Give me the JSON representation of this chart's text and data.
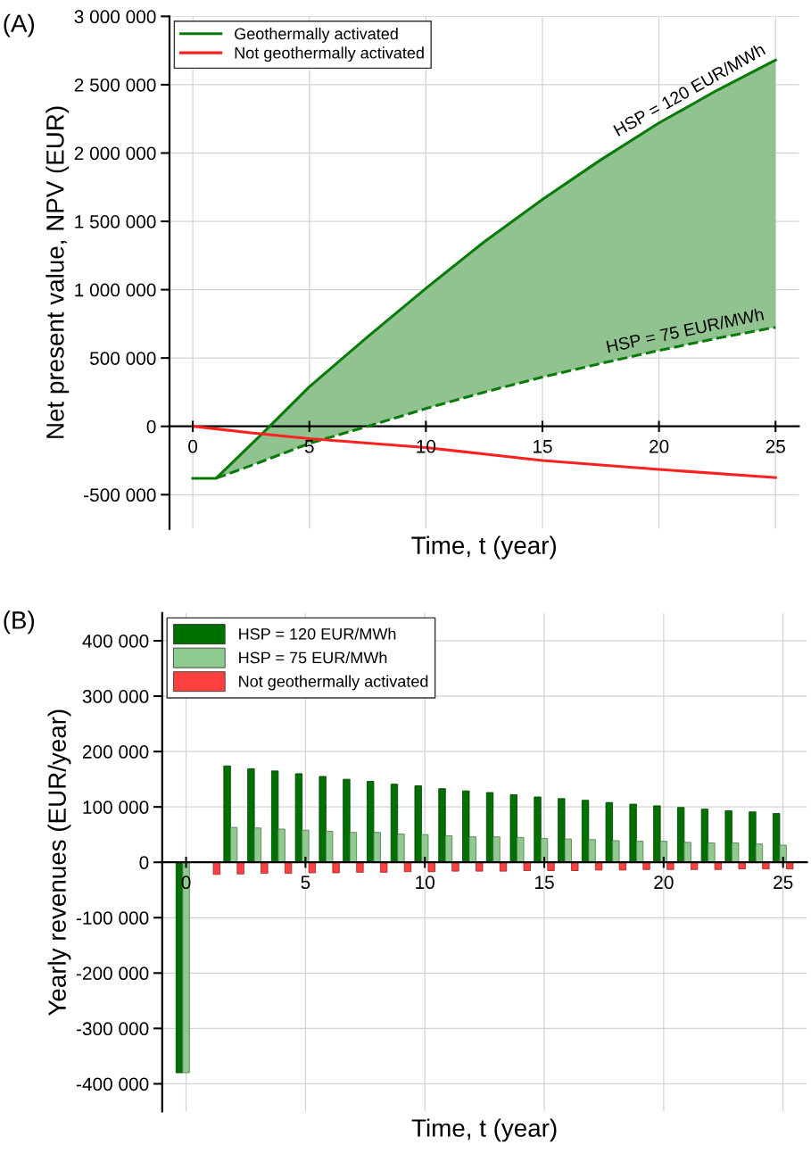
{
  "chart_data": [
    {
      "type": "line",
      "title": "(A)",
      "xlabel": "Time, t (year)",
      "ylabel": "Net present value, NPV (EUR)",
      "series": [
        {
          "name": "Geothermally activated",
          "color": "#0a7a0a",
          "line_style": "solid",
          "x": [
            0,
            1,
            2,
            3,
            4,
            5,
            7.5,
            10,
            12.5,
            15,
            17.5,
            20,
            22.5,
            25
          ],
          "values": [
            -380000,
            -380000,
            -215000,
            -50000,
            120000,
            290000,
            655000,
            1010000,
            1350000,
            1660000,
            1950000,
            2220000,
            2460000,
            2680000
          ],
          "lower": [
            -380000,
            -380000,
            -318000,
            -255000,
            -190000,
            -125000,
            0,
            130000,
            250000,
            360000,
            460000,
            555000,
            645000,
            725000
          ],
          "upper": [
            -380000,
            -380000,
            -215000,
            -50000,
            120000,
            290000,
            655000,
            1010000,
            1350000,
            1660000,
            1950000,
            2220000,
            2460000,
            2680000
          ]
        },
        {
          "color": "#0a7a0a",
          "line_style": "dashed",
          "x": [
            1,
            2,
            3,
            4,
            5,
            7.5,
            10,
            12.5,
            15,
            17.5,
            20,
            22.5,
            25
          ],
          "values": [
            -380000,
            -318000,
            -255000,
            -190000,
            -125000,
            0,
            130000,
            250000,
            360000,
            460000,
            555000,
            645000,
            725000
          ]
        },
        {
          "name": "Not geothermally activated",
          "color": "#ff2020",
          "line_style": "solid",
          "x": [
            0,
            2.5,
            5,
            10,
            15,
            20,
            25
          ],
          "values": [
            0,
            -47000,
            -90000,
            -155000,
            -250000,
            -315000,
            -375000
          ]
        }
      ],
      "xlim": [
        -1,
        26
      ],
      "xticks": [
        0,
        5,
        10,
        15,
        20,
        25
      ],
      "ylim": [
        -750000,
        3000000
      ],
      "yticks": [
        {
          "value": -500000,
          "label": "-500 000"
        },
        0,
        {
          "value": 500000,
          "label": "500 000"
        },
        {
          "value": 1000000,
          "label": "1 000 000"
        },
        {
          "value": 1500000,
          "label": "1 500 000"
        },
        {
          "value": 2000000,
          "label": "2 000 000"
        },
        {
          "value": 2500000,
          "label": "2 500 000"
        },
        {
          "value": 3000000,
          "label": "3 000 000"
        }
      ],
      "annotations": [
        {
          "text": "HSP = 120 EUR/MWh",
          "x": 21.5,
          "y": 2365000
        },
        {
          "text": "HSP = 75 EUR/MWh",
          "x": 21.2,
          "y": 597000
        }
      ],
      "grid": true,
      "legend": "top left",
      "marker": "none"
    },
    {
      "type": "bar",
      "title": "(B)",
      "xlabel": "Time, t (year)",
      "ylabel": "Yearly revenues (EUR/year)",
      "x": [
        0,
        1,
        2,
        3,
        4,
        5,
        6,
        7,
        8,
        9,
        10,
        11,
        12,
        13,
        14,
        15,
        16,
        17,
        18,
        19,
        20,
        21,
        22,
        23,
        24,
        25
      ],
      "series": [
        {
          "name": "HSP = 120 EUR/MWh",
          "color": "#007000",
          "values": [
            -380000,
            null,
            174000,
            169000,
            165000,
            160000,
            155000,
            150000,
            146000,
            141000,
            138000,
            133000,
            129000,
            126000,
            122000,
            118000,
            115000,
            112000,
            108000,
            105000,
            102000,
            99000,
            96000,
            93000,
            91000,
            88000
          ]
        },
        {
          "name": "HSP = 75 EUR/MWh",
          "color": "#8fca8f",
          "values": [
            -380000,
            null,
            63000,
            62000,
            60000,
            58000,
            56000,
            54000,
            54000,
            51000,
            50000,
            48000,
            46000,
            46000,
            45000,
            43000,
            42000,
            41000,
            39000,
            38000,
            38000,
            36000,
            35000,
            35000,
            33000,
            31000
          ]
        },
        {
          "name": "Not geothermally activated",
          "color": "#ff4040",
          "values": [
            null,
            -22000,
            -21000,
            -20000,
            -20000,
            -19000,
            -19000,
            -18000,
            -18000,
            -17000,
            -17000,
            -16000,
            -16000,
            -16000,
            -15000,
            -15000,
            -15000,
            -14000,
            -14000,
            -13000,
            -13000,
            -13000,
            -13000,
            -12000,
            -12000,
            -12000
          ]
        }
      ],
      "xlim": [
        -1,
        26
      ],
      "xticks": [
        0,
        5,
        10,
        15,
        20,
        25
      ],
      "ylim": [
        -450000,
        450000
      ],
      "yticks": [
        {
          "value": -400000,
          "label": "-400 000"
        },
        {
          "value": -300000,
          "label": "-300 000"
        },
        {
          "value": -200000,
          "label": "-200 000"
        },
        {
          "value": -100000,
          "label": "-100 000"
        },
        0,
        {
          "value": 100000,
          "label": "100 000"
        },
        {
          "value": 200000,
          "label": "200 000"
        },
        {
          "value": 300000,
          "label": "300 000"
        },
        {
          "value": 400000,
          "label": "400 000"
        }
      ],
      "grid": true,
      "legend": "top left"
    }
  ]
}
